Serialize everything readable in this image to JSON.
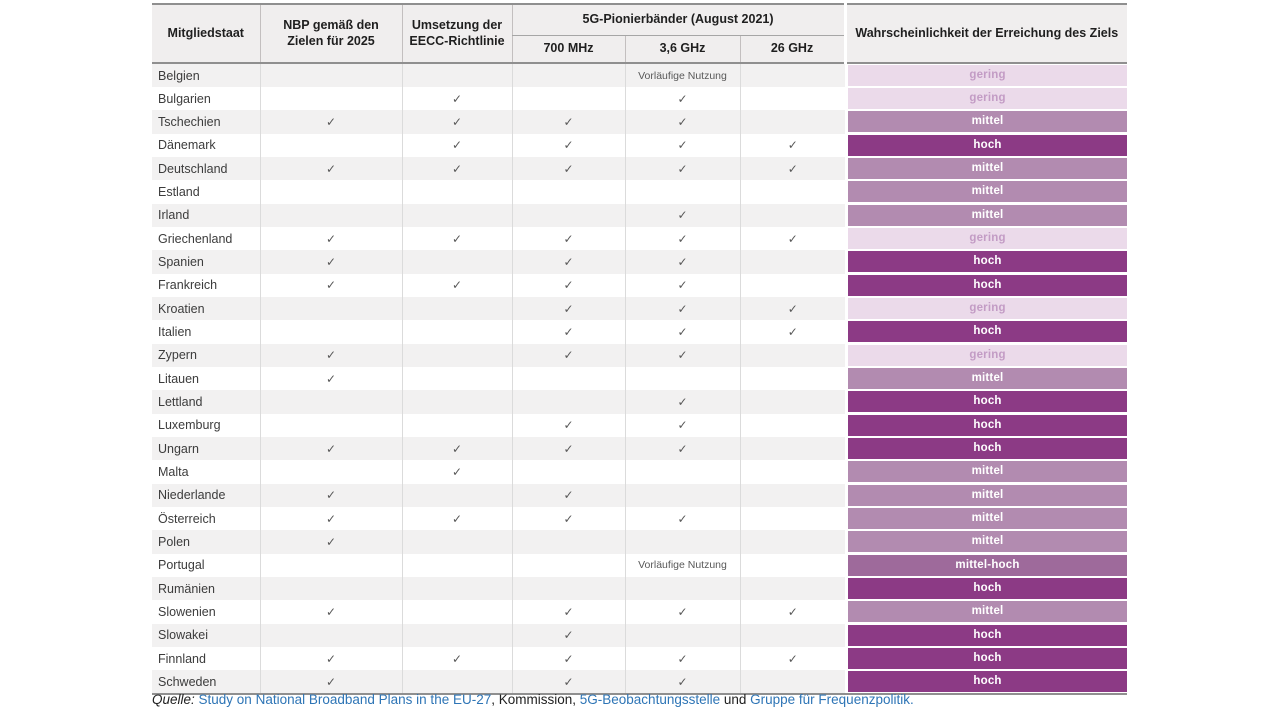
{
  "table": {
    "headers": {
      "member": "Mitgliedstaat",
      "nbp": "NBP gemäß den Zielen für 2025",
      "eecc": "Umsetzung der EECC-Richtlinie",
      "pioneer": "5G-Pionierbänder (August 2021)",
      "mhz700": "700 MHz",
      "ghz36": "3,6 GHz",
      "ghz26": "26 GHz",
      "probability": "Wahrscheinlichkeit der Erreichung des Ziels"
    },
    "check_glyph": "✓",
    "provisional_note": "Vorläufige Nutzung",
    "probability_levels": {
      "gering": {
        "bg": "#EBDAEA",
        "text": "#C39CC5"
      },
      "mittel": {
        "bg": "#B28BB0",
        "text": "#FFFFFF"
      },
      "mittel-hoch": {
        "bg": "#9E6A9B",
        "text": "#FFFFFF"
      },
      "hoch": {
        "bg": "#8C3A85",
        "text": "#FFFFFF"
      }
    },
    "rows": [
      {
        "name": "Belgien",
        "nbp": false,
        "eecc": false,
        "mhz700": false,
        "ghz36": "Vorläufige Nutzung",
        "ghz26": false,
        "prob": "gering"
      },
      {
        "name": "Bulgarien",
        "nbp": false,
        "eecc": true,
        "mhz700": false,
        "ghz36": true,
        "ghz26": false,
        "prob": "gering"
      },
      {
        "name": "Tschechien",
        "nbp": true,
        "eecc": true,
        "mhz700": true,
        "ghz36": true,
        "ghz26": false,
        "prob": "mittel"
      },
      {
        "name": "Dänemark",
        "nbp": false,
        "eecc": true,
        "mhz700": true,
        "ghz36": true,
        "ghz26": true,
        "prob": "hoch"
      },
      {
        "name": "Deutschland",
        "nbp": true,
        "eecc": true,
        "mhz700": true,
        "ghz36": true,
        "ghz26": true,
        "prob": "mittel"
      },
      {
        "name": "Estland",
        "nbp": false,
        "eecc": false,
        "mhz700": false,
        "ghz36": false,
        "ghz26": false,
        "prob": "mittel"
      },
      {
        "name": "Irland",
        "nbp": false,
        "eecc": false,
        "mhz700": false,
        "ghz36": true,
        "ghz26": false,
        "prob": "mittel"
      },
      {
        "name": "Griechenland",
        "nbp": true,
        "eecc": true,
        "mhz700": true,
        "ghz36": true,
        "ghz26": true,
        "prob": "gering"
      },
      {
        "name": "Spanien",
        "nbp": true,
        "eecc": false,
        "mhz700": true,
        "ghz36": true,
        "ghz26": false,
        "prob": "hoch"
      },
      {
        "name": "Frankreich",
        "nbp": true,
        "eecc": true,
        "mhz700": true,
        "ghz36": true,
        "ghz26": false,
        "prob": "hoch"
      },
      {
        "name": "Kroatien",
        "nbp": false,
        "eecc": false,
        "mhz700": true,
        "ghz36": true,
        "ghz26": true,
        "prob": "gering"
      },
      {
        "name": "Italien",
        "nbp": false,
        "eecc": false,
        "mhz700": true,
        "ghz36": true,
        "ghz26": true,
        "prob": "hoch"
      },
      {
        "name": "Zypern",
        "nbp": true,
        "eecc": false,
        "mhz700": true,
        "ghz36": true,
        "ghz26": false,
        "prob": "gering"
      },
      {
        "name": "Litauen",
        "nbp": true,
        "eecc": false,
        "mhz700": false,
        "ghz36": false,
        "ghz26": false,
        "prob": "mittel"
      },
      {
        "name": "Lettland",
        "nbp": false,
        "eecc": false,
        "mhz700": false,
        "ghz36": true,
        "ghz26": false,
        "prob": "hoch"
      },
      {
        "name": "Luxemburg",
        "nbp": false,
        "eecc": false,
        "mhz700": true,
        "ghz36": true,
        "ghz26": false,
        "prob": "hoch"
      },
      {
        "name": "Ungarn",
        "nbp": true,
        "eecc": true,
        "mhz700": true,
        "ghz36": true,
        "ghz26": false,
        "prob": "hoch"
      },
      {
        "name": "Malta",
        "nbp": false,
        "eecc": true,
        "mhz700": false,
        "ghz36": false,
        "ghz26": false,
        "prob": "mittel"
      },
      {
        "name": "Niederlande",
        "nbp": true,
        "eecc": false,
        "mhz700": true,
        "ghz36": false,
        "ghz26": false,
        "prob": "mittel"
      },
      {
        "name": "Österreich",
        "nbp": true,
        "eecc": true,
        "mhz700": true,
        "ghz36": true,
        "ghz26": false,
        "prob": "mittel"
      },
      {
        "name": "Polen",
        "nbp": true,
        "eecc": false,
        "mhz700": false,
        "ghz36": false,
        "ghz26": false,
        "prob": "mittel"
      },
      {
        "name": "Portugal",
        "nbp": false,
        "eecc": false,
        "mhz700": false,
        "ghz36": "Vorläufige Nutzung",
        "ghz26": false,
        "prob": "mittel-hoch"
      },
      {
        "name": "Rumänien",
        "nbp": false,
        "eecc": false,
        "mhz700": false,
        "ghz36": false,
        "ghz26": false,
        "prob": "hoch"
      },
      {
        "name": "Slowenien",
        "nbp": true,
        "eecc": false,
        "mhz700": true,
        "ghz36": true,
        "ghz26": true,
        "prob": "mittel"
      },
      {
        "name": "Slowakei",
        "nbp": false,
        "eecc": false,
        "mhz700": true,
        "ghz36": false,
        "ghz26": false,
        "prob": "hoch"
      },
      {
        "name": "Finnland",
        "nbp": true,
        "eecc": true,
        "mhz700": true,
        "ghz36": true,
        "ghz26": true,
        "prob": "hoch"
      },
      {
        "name": "Schweden",
        "nbp": true,
        "eecc": false,
        "mhz700": true,
        "ghz36": true,
        "ghz26": false,
        "prob": "hoch"
      }
    ]
  },
  "footer": {
    "label": "Quelle: ",
    "link1": "Study on National Broadband Plans in the EU-27",
    "mid1": ", Kommission, ",
    "link2": "5G-Beobachtungsstelle",
    "mid2": " und ",
    "link3": "Gruppe für Frequenzpolitik.",
    "link_color": "#2E75B6"
  }
}
